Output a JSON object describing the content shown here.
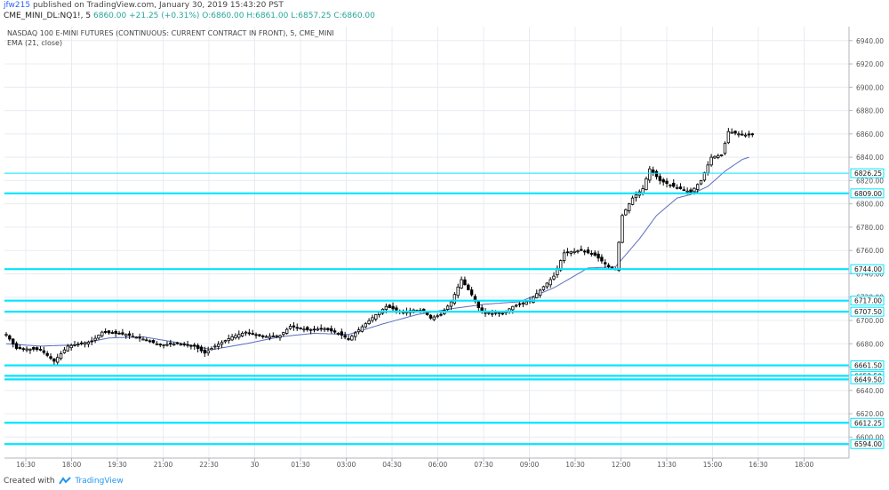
{
  "header": {
    "user": "jfw215",
    "published": "published on TradingView.com, January 30, 2019 15:43:20 PST",
    "symbol": "CME_MINI_DL:NQ1!, 5",
    "price": "6860.00",
    "change": "+21.25 (+0.31%)",
    "ohlc": "O:6860.00 H:6861.00 L:6857.25 C:6860.00"
  },
  "chart_data": {
    "type": "candlestick",
    "title": "NASDAQ 100 E-MINI FUTURES (CONTINUOUS: CURRENT CONTRACT IN FRONT), 5, CME_MINI",
    "indicator": "EMA (21, close)",
    "ylim": [
      6582,
      6952
    ],
    "yticks": [
      "6940.00",
      "6920.00",
      "6900.00",
      "6880.00",
      "6860.00",
      "6840.00",
      "6820.00",
      "6800.00",
      "6780.00",
      "6760.00",
      "6740.00",
      "6720.00",
      "6700.00",
      "6680.00",
      "6660.00",
      "6640.00",
      "6620.00",
      "6600.00"
    ],
    "xticks": [
      "16:30",
      "18:00",
      "19:30",
      "21:00",
      "22:30",
      "30",
      "01:30",
      "03:00",
      "04:30",
      "06:00",
      "07:30",
      "09:00",
      "10:30",
      "12:00",
      "13:30",
      "15:00",
      "16:30",
      "18:00"
    ],
    "horizontal_levels": [
      6826.25,
      6809.0,
      6744.0,
      6717.0,
      6707.5,
      6661.5,
      6652.5,
      6649.5,
      6612.25,
      6594.0
    ],
    "level_labels": [
      "6826.25",
      "6809.00",
      "6744.00",
      "6717.00",
      "6707.50",
      "6661.50",
      "6652.50",
      "6649.50",
      "6612.25",
      "6594.00"
    ],
    "close_path": [
      [
        0,
        6688
      ],
      [
        3,
        6676
      ],
      [
        10,
        6675
      ],
      [
        14,
        6665
      ],
      [
        18,
        6678
      ],
      [
        25,
        6682
      ],
      [
        28,
        6690
      ],
      [
        35,
        6688
      ],
      [
        40,
        6684
      ],
      [
        45,
        6679
      ],
      [
        50,
        6680
      ],
      [
        55,
        6678
      ],
      [
        58,
        6672
      ],
      [
        61,
        6678
      ],
      [
        66,
        6686
      ],
      [
        70,
        6690
      ],
      [
        75,
        6686
      ],
      [
        80,
        6687
      ],
      [
        83,
        6695
      ],
      [
        88,
        6692
      ],
      [
        93,
        6693
      ],
      [
        97,
        6689
      ],
      [
        100,
        6684
      ],
      [
        103,
        6692
      ],
      [
        108,
        6705
      ],
      [
        111,
        6712
      ],
      [
        116,
        6707
      ],
      [
        119,
        6709
      ],
      [
        122,
        6708
      ],
      [
        124,
        6702
      ],
      [
        127,
        6705
      ],
      [
        130,
        6716
      ],
      [
        133,
        6735
      ],
      [
        136,
        6722
      ],
      [
        138,
        6711
      ],
      [
        140,
        6706
      ],
      [
        145,
        6706
      ],
      [
        148,
        6712
      ],
      [
        153,
        6717
      ],
      [
        156,
        6726
      ],
      [
        160,
        6738
      ],
      [
        163,
        6758
      ],
      [
        168,
        6760
      ],
      [
        172,
        6756
      ],
      [
        176,
        6746
      ],
      [
        178,
        6744
      ],
      [
        180,
        6790
      ],
      [
        183,
        6805
      ],
      [
        186,
        6813
      ],
      [
        188,
        6830
      ],
      [
        191,
        6820
      ],
      [
        195,
        6815
      ],
      [
        198,
        6812
      ],
      [
        200,
        6810
      ],
      [
        203,
        6820
      ],
      [
        206,
        6840
      ],
      [
        209,
        6842
      ],
      [
        211,
        6862
      ],
      [
        214,
        6860
      ],
      [
        216,
        6859
      ],
      [
        218,
        6860
      ]
    ],
    "ema_path": [
      [
        0,
        6680
      ],
      [
        10,
        6678
      ],
      [
        20,
        6679
      ],
      [
        30,
        6685
      ],
      [
        40,
        6686
      ],
      [
        50,
        6681
      ],
      [
        60,
        6675
      ],
      [
        70,
        6680
      ],
      [
        80,
        6686
      ],
      [
        90,
        6689
      ],
      [
        100,
        6688
      ],
      [
        110,
        6697
      ],
      [
        120,
        6705
      ],
      [
        130,
        6710
      ],
      [
        140,
        6714
      ],
      [
        150,
        6716
      ],
      [
        160,
        6728
      ],
      [
        170,
        6745
      ],
      [
        178,
        6746
      ],
      [
        185,
        6770
      ],
      [
        190,
        6790
      ],
      [
        196,
        6805
      ],
      [
        200,
        6808
      ],
      [
        205,
        6815
      ],
      [
        210,
        6828
      ],
      [
        215,
        6838
      ],
      [
        217,
        6840
      ]
    ],
    "colors": {
      "candles": "#000000",
      "ema": "#5b6dbe",
      "levels": "#00e5ff",
      "grid": "#e8ecf1",
      "axis_text": "#555555"
    }
  },
  "footer": {
    "created_with": "Created with",
    "brand": "TradingView"
  }
}
